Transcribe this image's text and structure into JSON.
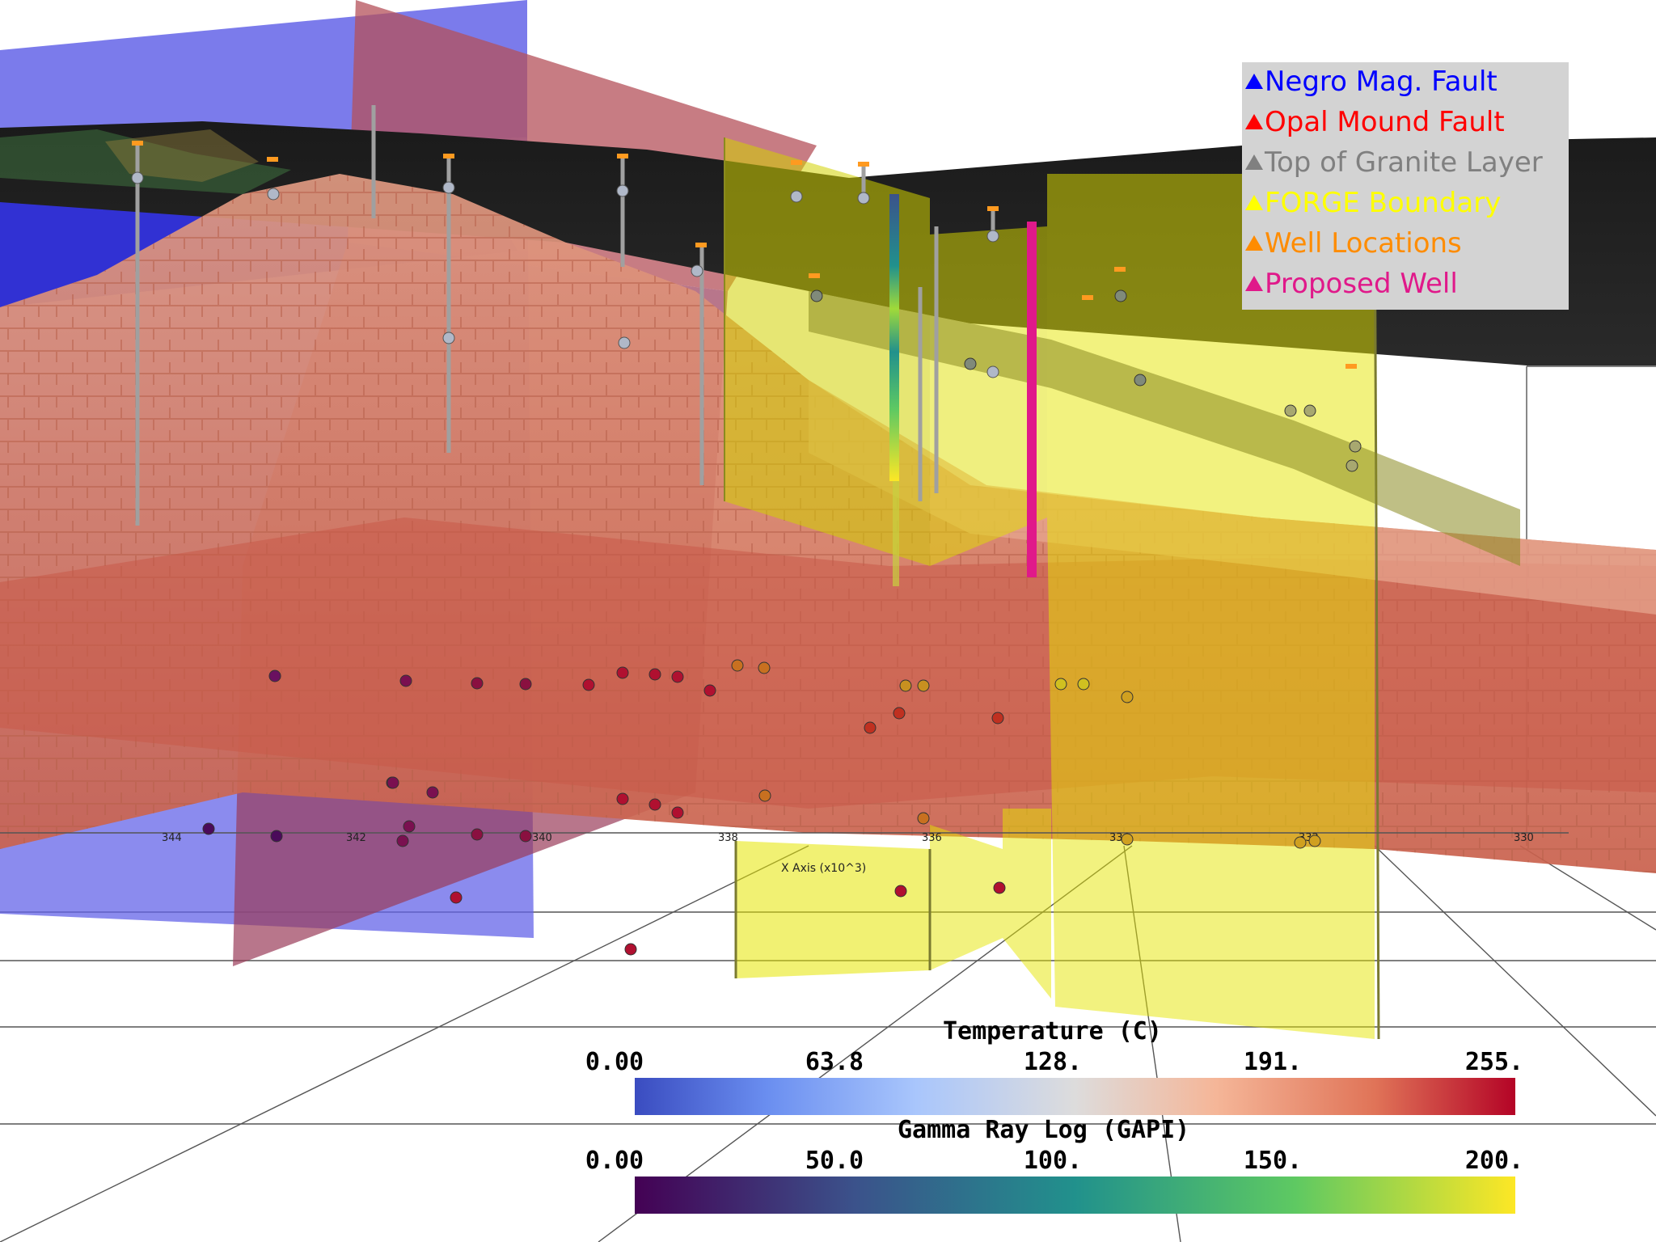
{
  "legend": {
    "items": [
      {
        "label": "Negro Mag. Fault",
        "color": "#0000ff"
      },
      {
        "label": "Opal Mound Fault",
        "color": "#ff0000"
      },
      {
        "label": "Top of Granite Layer",
        "color": "#808080"
      },
      {
        "label": "FORGE Boundary",
        "color": "#ffff00"
      },
      {
        "label": "Well Locations",
        "color": "#ff8c00"
      },
      {
        "label": "Proposed Well",
        "color": "#e0198a"
      }
    ]
  },
  "colorbars": {
    "temperature": {
      "title": "Temperature (C)",
      "ticks": [
        "0.00",
        "63.8",
        "128.",
        "191.",
        "255."
      ],
      "range": [
        0,
        255
      ],
      "colormap": "coolwarm"
    },
    "gamma": {
      "title": "Gamma Ray Log (GAPI)",
      "ticks": [
        "0.00",
        "50.0",
        "100.",
        "150.",
        "200."
      ],
      "range": [
        0,
        200
      ],
      "colormap": "viridis"
    }
  },
  "axes": {
    "x_title": "X Axis (x10^3)",
    "x_ticks": [
      "344",
      "342",
      "340",
      "338",
      "336",
      "334",
      "332",
      "330"
    ]
  },
  "colors": {
    "fault_negro": "#5a5ae6",
    "fault_opal": "#b4505a",
    "granite": "#141414",
    "forge": "#d2d200",
    "temperature_volume": "#d87a60",
    "proposed_well": "#e0198a"
  }
}
